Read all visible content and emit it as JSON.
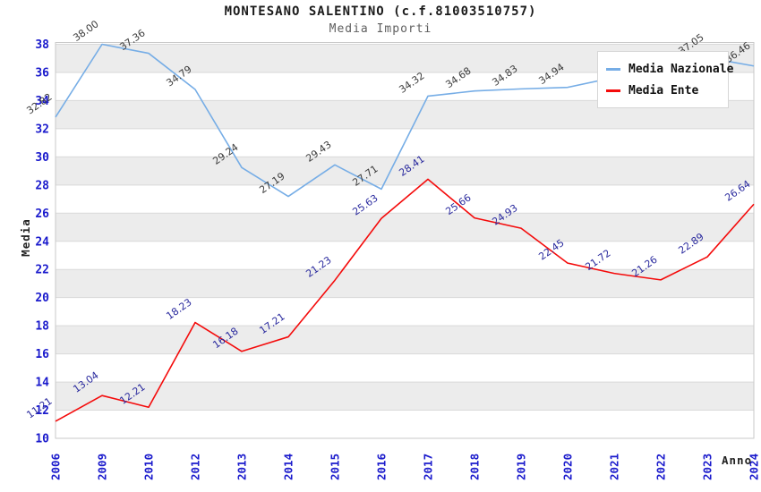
{
  "header": {
    "title": "MONTESANO SALENTINO (c.f.81003510757)",
    "subtitle": "Media Importi"
  },
  "axes": {
    "y_label": "Media",
    "x_label": "Anno"
  },
  "legend": {
    "items": [
      {
        "label": "Media Nazionale",
        "color": "#76ade6"
      },
      {
        "label": "Media Ente",
        "color": "#f40b0b"
      }
    ]
  },
  "chart_data": {
    "type": "line",
    "title": "MONTESANO SALENTINO (c.f.81003510757)",
    "subtitle": "Media Importi",
    "xlabel": "Anno",
    "ylabel": "Media",
    "categories": [
      "2006",
      "2009",
      "2010",
      "2012",
      "2013",
      "2014",
      "2015",
      "2016",
      "2017",
      "2018",
      "2019",
      "2020",
      "2021",
      "2022",
      "2023",
      "2024"
    ],
    "series": [
      {
        "name": "Media Nazionale",
        "color": "#76ade6",
        "label_color": "#3c3c3c",
        "values": [
          32.82,
          38.0,
          37.36,
          34.79,
          29.24,
          27.19,
          29.43,
          27.71,
          34.32,
          34.68,
          34.83,
          34.94,
          null,
          null,
          37.05,
          36.46
        ]
      },
      {
        "name": "Media Ente",
        "color": "#f40b0b",
        "label_color": "#2a2a9e",
        "values": [
          11.21,
          13.04,
          12.21,
          18.23,
          16.18,
          17.21,
          21.23,
          25.63,
          28.41,
          25.66,
          24.93,
          22.45,
          21.72,
          21.26,
          22.89,
          26.64
        ]
      }
    ],
    "ylim": [
      10,
      38
    ],
    "yticks": [
      10,
      12,
      14,
      16,
      18,
      20,
      22,
      24,
      26,
      28,
      30,
      32,
      34,
      36,
      38
    ],
    "tick_color": "#1a1acc",
    "grid": true,
    "gridline_color": "#d9d9d9",
    "band_colors": [
      "#ececec",
      "#ffffff"
    ],
    "plot_border_color": "#c9c9c9",
    "legend_position": "top-right"
  }
}
